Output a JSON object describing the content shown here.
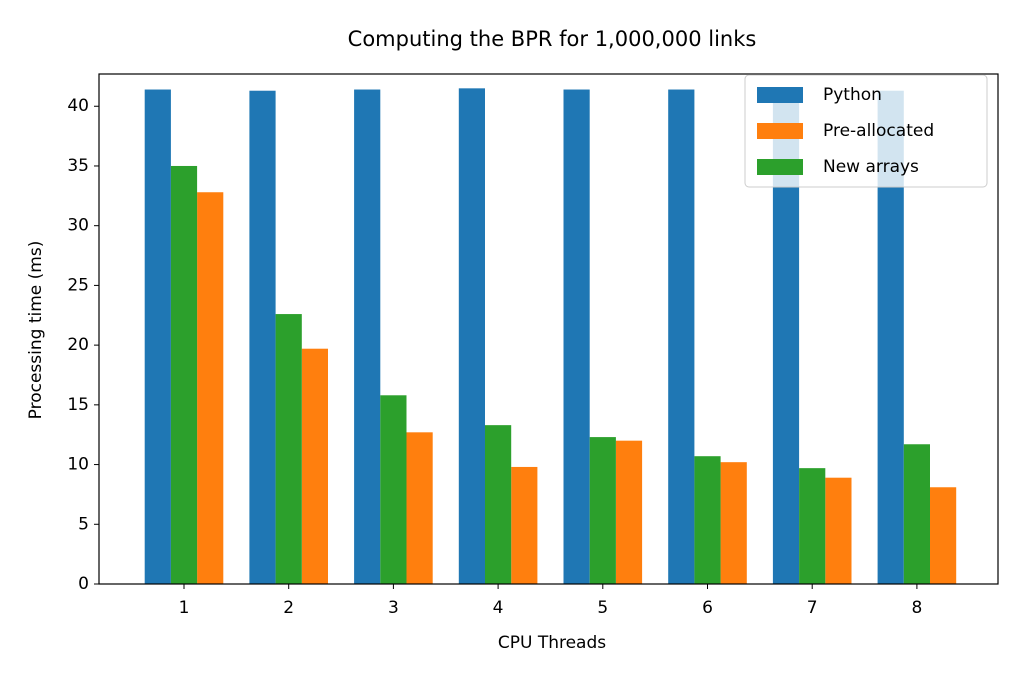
{
  "chart_data": {
    "type": "bar",
    "title": "Computing the BPR for 1,000,000 links",
    "x_label": "CPU Threads",
    "y_label": "Processing time (ms)",
    "categories": [
      "1",
      "2",
      "3",
      "4",
      "5",
      "6",
      "7",
      "8"
    ],
    "series": [
      {
        "name": "Python",
        "color": "#1f77b4",
        "values": [
          41.4,
          41.3,
          41.4,
          41.5,
          41.4,
          41.4,
          41.3,
          41.3
        ]
      },
      {
        "name": "Pre-allocated",
        "color": "#ff7f0e",
        "values": [
          32.8,
          19.7,
          12.7,
          9.8,
          12.0,
          10.2,
          8.9,
          8.1
        ]
      },
      {
        "name": "New arrays",
        "color": "#2ca02c",
        "values": [
          35.0,
          22.6,
          15.8,
          13.3,
          12.3,
          10.7,
          9.7,
          11.7
        ]
      }
    ],
    "ylim": [
      0,
      42.7
    ],
    "yticks": [
      0,
      5,
      10,
      15,
      20,
      25,
      30,
      35,
      40
    ],
    "legend": "upper right"
  }
}
